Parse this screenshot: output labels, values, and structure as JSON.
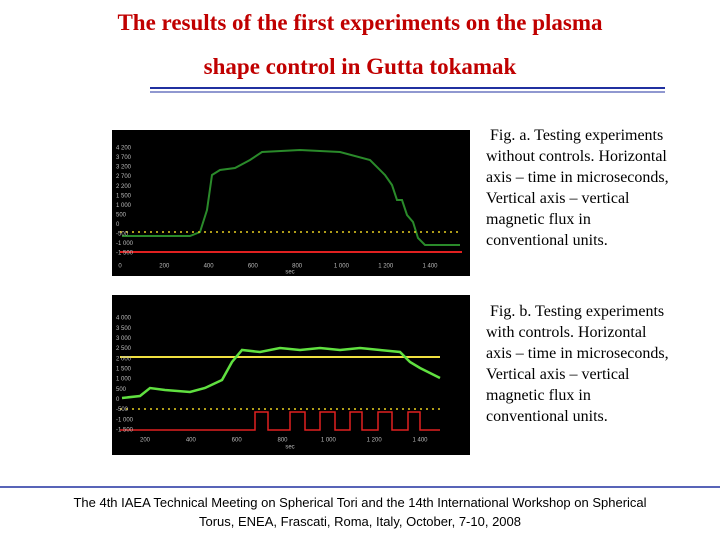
{
  "title": {
    "lines": [
      "The results of the first experiments on the plasma",
      "shape control in Gutta tokamak"
    ]
  },
  "figures": [
    {
      "caption": [
        "Fig. a. Testing experiments",
        "without controls. Horizontal",
        "axis – time in microseconds,",
        "Vertical axis – vertical",
        "magnetic flux in",
        "conventional units."
      ],
      "y_tick_labels": [
        "4 200",
        "3 700",
        "3 200",
        "2 700",
        "2 200",
        "1 500",
        "1 000",
        "500",
        "0",
        "-500",
        "-1 000",
        "-1 500"
      ],
      "x_tick_labels": [
        "0",
        "200",
        "400",
        "600",
        "800",
        "1 000",
        "1 200",
        "1 400"
      ],
      "x_unit": "sec"
    },
    {
      "caption": [
        "Fig. b. Testing experiments",
        "with controls. Horizontal",
        "axis – time in microseconds,",
        "Vertical axis – vertical",
        "magnetic flux in",
        "conventional units."
      ],
      "y_tick_labels": [
        "4 000",
        "3 500",
        "3 000",
        "2 500",
        "2 000",
        "1 500",
        "1 000",
        "500",
        "0",
        "-500",
        "-1 000",
        "-1 500"
      ],
      "x_tick_labels": [
        "200",
        "400",
        "600",
        "800",
        "1 000",
        "1 200",
        "1 400"
      ],
      "x_unit": "sec"
    }
  ],
  "footer": {
    "lines": [
      "The 4th IAEA Technical Meeting on Spherical Tori and the 14th International Workshop on Spherical",
      "Torus, ENEA, Frascati, Roma, Italy, October, 7-10, 2008"
    ]
  }
}
